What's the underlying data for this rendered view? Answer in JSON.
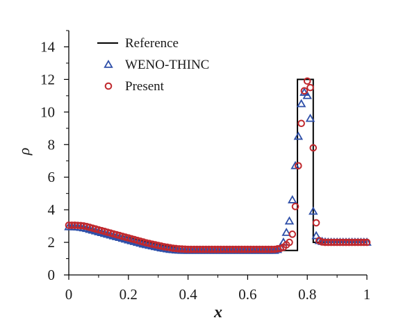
{
  "chart_data": {
    "type": "scatter",
    "title": "",
    "xlabel": "x",
    "ylabel": "ρ",
    "xlim": [
      0,
      1
    ],
    "ylim": [
      0,
      15
    ],
    "x_ticks": [
      0,
      0.2,
      0.4,
      0.6,
      0.8,
      1
    ],
    "x_tick_labels": [
      "0",
      "0.2",
      "0.4",
      "0.6",
      "0.8",
      "1"
    ],
    "y_ticks": [
      0,
      2,
      4,
      6,
      8,
      10,
      12,
      14
    ],
    "y_tick_labels": [
      "0",
      "2",
      "4",
      "6",
      "8",
      "10",
      "12",
      "14"
    ],
    "grid": false,
    "legend_position": "top-left",
    "series": [
      {
        "name": "Reference",
        "style": "line",
        "color": "#000000",
        "x": [
          0,
          0.05,
          0.1,
          0.15,
          0.2,
          0.25,
          0.3,
          0.35,
          0.4,
          0.42,
          0.5,
          0.6,
          0.7,
          0.765,
          0.765,
          0.767,
          0.767,
          0.818,
          0.818,
          0.82,
          0.82,
          0.9,
          1.0
        ],
        "y": [
          3.0,
          2.95,
          2.75,
          2.5,
          2.3,
          2.07,
          1.85,
          1.7,
          1.53,
          1.5,
          1.5,
          1.5,
          1.5,
          1.5,
          1.5,
          1.5,
          12.0,
          12.0,
          12.0,
          12.0,
          2.0,
          2.0,
          2.0
        ]
      },
      {
        "name": "WENO-THINC",
        "style": "marker-triangle",
        "color": "#2e4fa8",
        "x": [
          0.0,
          0.01,
          0.02,
          0.03,
          0.04,
          0.05,
          0.06,
          0.07,
          0.08,
          0.09,
          0.1,
          0.11,
          0.12,
          0.13,
          0.14,
          0.15,
          0.16,
          0.17,
          0.18,
          0.19,
          0.2,
          0.21,
          0.22,
          0.23,
          0.24,
          0.25,
          0.26,
          0.27,
          0.28,
          0.29,
          0.3,
          0.31,
          0.32,
          0.33,
          0.34,
          0.35,
          0.36,
          0.37,
          0.38,
          0.39,
          0.4,
          0.41,
          0.42,
          0.43,
          0.44,
          0.45,
          0.46,
          0.47,
          0.48,
          0.49,
          0.5,
          0.51,
          0.52,
          0.53,
          0.54,
          0.55,
          0.56,
          0.57,
          0.58,
          0.59,
          0.6,
          0.61,
          0.62,
          0.63,
          0.64,
          0.65,
          0.66,
          0.67,
          0.68,
          0.69,
          0.7,
          0.71,
          0.72,
          0.73,
          0.74,
          0.75,
          0.76,
          0.77,
          0.78,
          0.79,
          0.8,
          0.81,
          0.82,
          0.83,
          0.84,
          0.85,
          0.86,
          0.87,
          0.88,
          0.89,
          0.9,
          0.91,
          0.92,
          0.93,
          0.94,
          0.95,
          0.96,
          0.97,
          0.98,
          0.99,
          1.0
        ],
        "y": [
          2.95,
          2.95,
          2.94,
          2.93,
          2.91,
          2.88,
          2.84,
          2.79,
          2.74,
          2.69,
          2.64,
          2.59,
          2.54,
          2.49,
          2.44,
          2.39,
          2.34,
          2.29,
          2.24,
          2.19,
          2.14,
          2.09,
          2.04,
          1.99,
          1.94,
          1.89,
          1.85,
          1.81,
          1.77,
          1.73,
          1.69,
          1.65,
          1.62,
          1.59,
          1.56,
          1.54,
          1.52,
          1.51,
          1.5,
          1.5,
          1.5,
          1.5,
          1.5,
          1.5,
          1.5,
          1.5,
          1.5,
          1.5,
          1.5,
          1.5,
          1.5,
          1.5,
          1.5,
          1.5,
          1.5,
          1.5,
          1.5,
          1.5,
          1.5,
          1.5,
          1.5,
          1.5,
          1.5,
          1.5,
          1.5,
          1.5,
          1.5,
          1.5,
          1.5,
          1.5,
          1.55,
          1.7,
          2.0,
          2.6,
          3.3,
          4.6,
          6.7,
          8.5,
          10.5,
          11.2,
          11.0,
          9.6,
          3.9,
          2.4,
          2.1,
          2.05,
          2.02,
          2.0,
          2.0,
          2.0,
          2.0,
          2.0,
          2.0,
          2.0,
          2.0,
          2.0,
          2.0,
          2.0,
          2.0,
          2.0,
          2.0
        ]
      },
      {
        "name": "Present",
        "style": "marker-circle",
        "color": "#c0282d",
        "x": [
          0.0,
          0.01,
          0.02,
          0.03,
          0.04,
          0.05,
          0.06,
          0.07,
          0.08,
          0.09,
          0.1,
          0.11,
          0.12,
          0.13,
          0.14,
          0.15,
          0.16,
          0.17,
          0.18,
          0.19,
          0.2,
          0.21,
          0.22,
          0.23,
          0.24,
          0.25,
          0.26,
          0.27,
          0.28,
          0.29,
          0.3,
          0.31,
          0.32,
          0.33,
          0.34,
          0.35,
          0.36,
          0.37,
          0.38,
          0.39,
          0.4,
          0.41,
          0.42,
          0.43,
          0.44,
          0.45,
          0.46,
          0.47,
          0.48,
          0.49,
          0.5,
          0.51,
          0.52,
          0.53,
          0.54,
          0.55,
          0.56,
          0.57,
          0.58,
          0.59,
          0.6,
          0.61,
          0.62,
          0.63,
          0.64,
          0.65,
          0.66,
          0.67,
          0.68,
          0.69,
          0.7,
          0.71,
          0.72,
          0.73,
          0.74,
          0.75,
          0.76,
          0.77,
          0.78,
          0.79,
          0.8,
          0.81,
          0.82,
          0.83,
          0.84,
          0.85,
          0.86,
          0.87,
          0.88,
          0.89,
          0.9,
          0.91,
          0.92,
          0.93,
          0.94,
          0.95,
          0.96,
          0.97,
          0.98,
          0.99,
          1.0
        ],
        "y": [
          3.05,
          3.05,
          3.05,
          3.04,
          3.03,
          3.01,
          2.97,
          2.92,
          2.87,
          2.82,
          2.77,
          2.72,
          2.67,
          2.62,
          2.57,
          2.52,
          2.47,
          2.42,
          2.37,
          2.32,
          2.27,
          2.22,
          2.17,
          2.12,
          2.07,
          2.02,
          1.97,
          1.93,
          1.89,
          1.85,
          1.81,
          1.77,
          1.73,
          1.7,
          1.67,
          1.64,
          1.62,
          1.6,
          1.59,
          1.58,
          1.57,
          1.57,
          1.57,
          1.57,
          1.57,
          1.57,
          1.57,
          1.57,
          1.57,
          1.57,
          1.57,
          1.57,
          1.57,
          1.57,
          1.57,
          1.57,
          1.57,
          1.57,
          1.57,
          1.57,
          1.57,
          1.57,
          1.57,
          1.57,
          1.57,
          1.57,
          1.57,
          1.57,
          1.57,
          1.57,
          1.6,
          1.63,
          1.7,
          1.85,
          2.0,
          2.5,
          4.2,
          6.7,
          9.3,
          11.3,
          11.9,
          11.5,
          7.8,
          3.2,
          2.1,
          2.02,
          2.0,
          2.0,
          2.0,
          2.0,
          2.0,
          2.0,
          2.0,
          2.0,
          2.0,
          2.0,
          2.0,
          2.0,
          2.0,
          2.0,
          2.0
        ]
      }
    ]
  }
}
